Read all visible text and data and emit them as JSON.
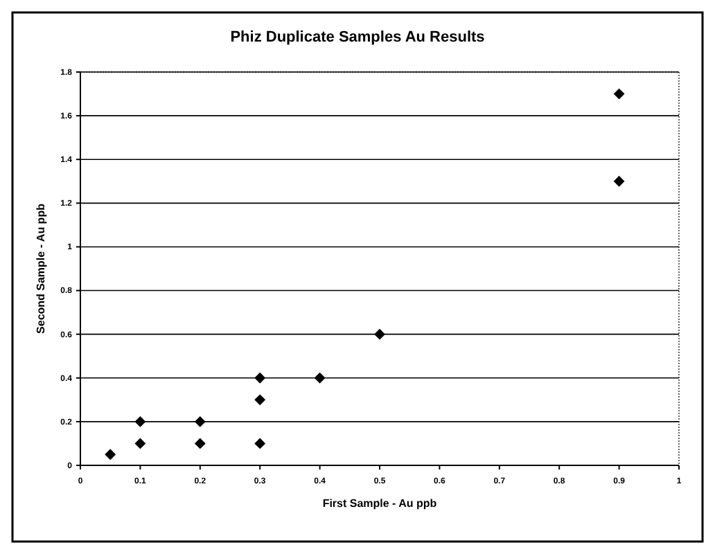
{
  "chart_data": {
    "type": "scatter",
    "title": "Phiz Duplicate Samples Au Results",
    "xlabel": "First Sample - Au ppb",
    "ylabel": "Second Sample - Au ppb",
    "x": [
      0.05,
      0.1,
      0.1,
      0.2,
      0.2,
      0.3,
      0.3,
      0.3,
      0.4,
      0.5,
      0.9,
      0.9
    ],
    "series": [
      {
        "color": "#000000",
        "values": [
          0.05,
          0.1,
          0.2,
          0.1,
          0.2,
          0.1,
          0.3,
          0.4,
          0.4,
          0.6,
          1.3,
          1.7
        ]
      }
    ],
    "xlim": [
      0,
      1
    ],
    "xticks": [
      0,
      0.1,
      0.2,
      0.3,
      0.4,
      0.5,
      0.6,
      0.7,
      0.8,
      0.9,
      1
    ],
    "ylim": [
      0,
      1.8
    ],
    "yticks": [
      0,
      0.2,
      0.4,
      0.6,
      0.8,
      1,
      1.2,
      1.4,
      1.6,
      1.8
    ],
    "grid": "y",
    "marker": "diamond"
  }
}
